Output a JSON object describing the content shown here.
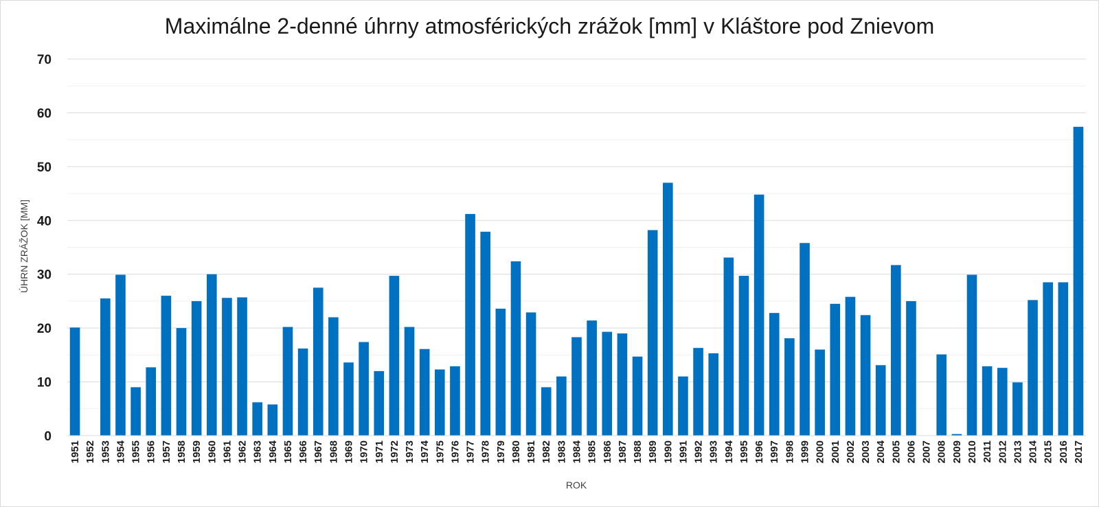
{
  "chart_data": {
    "type": "bar",
    "title": "Maximálne 2-denné úhrny atmosférických zrážok [mm] v Kláštore pod Znievom",
    "xlabel": "ROK",
    "ylabel": "ÚHRN ZRÁŽOK [MM]",
    "ylim": [
      0,
      70
    ],
    "yticks": [
      "0",
      "10",
      "20",
      "30",
      "40",
      "50",
      "60",
      "70"
    ],
    "grid": true,
    "bar_color": "#0070c0",
    "categories": [
      "1951",
      "1952",
      "1953",
      "1954",
      "1955",
      "1956",
      "1957",
      "1958",
      "1959",
      "1960",
      "1961",
      "1962",
      "1963",
      "1964",
      "1965",
      "1966",
      "1967",
      "1968",
      "1969",
      "1970",
      "1971",
      "1972",
      "1973",
      "1974",
      "1975",
      "1976",
      "1977",
      "1978",
      "1979",
      "1980",
      "1981",
      "1982",
      "1983",
      "1984",
      "1985",
      "1986",
      "1987",
      "1988",
      "1989",
      "1990",
      "1991",
      "1992",
      "1993",
      "1994",
      "1995",
      "1996",
      "1997",
      "1998",
      "1999",
      "2000",
      "2001",
      "2002",
      "2003",
      "2004",
      "2005",
      "2006",
      "2007",
      "2008",
      "2009",
      "2010",
      "2011",
      "2012",
      "2013",
      "2014",
      "2015",
      "2016",
      "2017"
    ],
    "values": [
      20.1,
      0,
      25.5,
      29.9,
      9.0,
      12.7,
      26.0,
      20.0,
      25.0,
      30.0,
      25.6,
      25.7,
      6.2,
      5.8,
      20.2,
      16.2,
      27.5,
      22.0,
      13.6,
      17.4,
      12.0,
      29.7,
      20.2,
      16.1,
      12.3,
      12.9,
      41.2,
      37.9,
      23.6,
      32.4,
      22.9,
      9.0,
      11.0,
      18.3,
      21.4,
      19.3,
      19.0,
      14.7,
      38.2,
      47.0,
      11.0,
      16.3,
      15.3,
      33.1,
      29.7,
      44.8,
      22.8,
      18.1,
      35.8,
      16.0,
      24.5,
      25.8,
      22.4,
      13.1,
      31.7,
      25.0,
      0,
      15.1,
      0.3,
      29.9,
      12.9,
      12.6,
      9.9,
      25.2,
      28.5,
      28.5,
      57.4
    ]
  }
}
